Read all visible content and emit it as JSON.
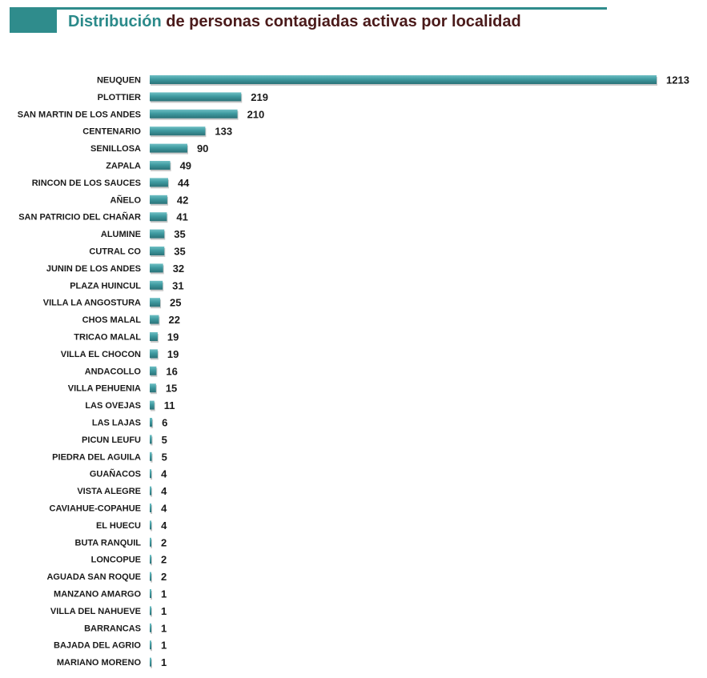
{
  "title": {
    "part1": "Distribución",
    "part2": "de personas contagiadas activas por localidad"
  },
  "colors": {
    "bar": "#3f9aa0",
    "bar_dark": "#2d7b82",
    "title_accent": "#2b8a8a",
    "title_main": "#4a1a1a"
  },
  "chart_data": {
    "type": "bar",
    "orientation": "horizontal",
    "title": "Distribución de personas contagiadas activas por localidad",
    "xlabel": "",
    "ylabel": "",
    "grid": false,
    "categories": [
      "NEUQUEN",
      "PLOTTIER",
      "SAN MARTIN DE LOS ANDES",
      "CENTENARIO",
      "SENILLOSA",
      "ZAPALA",
      "RINCON DE LOS SAUCES",
      "AÑELO",
      "SAN PATRICIO DEL CHAÑAR",
      "ALUMINE",
      "CUTRAL CO",
      "JUNIN DE LOS ANDES",
      "PLAZA HUINCUL",
      "VILLA LA ANGOSTURA",
      "CHOS MALAL",
      "TRICAO MALAL",
      "VILLA EL CHOCON",
      "ANDACOLLO",
      "VILLA PEHUENIA",
      "LAS OVEJAS",
      "LAS LAJAS",
      "PICUN LEUFU",
      "PIEDRA DEL AGUILA",
      "GUAÑACOS",
      "VISTA ALEGRE",
      "CAVIAHUE-COPAHUE",
      "EL HUECU",
      "BUTA RANQUIL",
      "LONCOPUE",
      "AGUADA SAN ROQUE",
      "MANZANO AMARGO",
      "VILLA DEL NAHUEVE",
      "BARRANCAS",
      "BAJADA DEL AGRIO",
      "MARIANO MORENO"
    ],
    "values": [
      1213,
      219,
      210,
      133,
      90,
      49,
      44,
      42,
      41,
      35,
      35,
      32,
      31,
      25,
      22,
      19,
      19,
      16,
      15,
      11,
      6,
      5,
      5,
      4,
      4,
      4,
      4,
      2,
      2,
      2,
      1,
      1,
      1,
      1,
      1
    ],
    "xlim": [
      0,
      1213
    ]
  }
}
